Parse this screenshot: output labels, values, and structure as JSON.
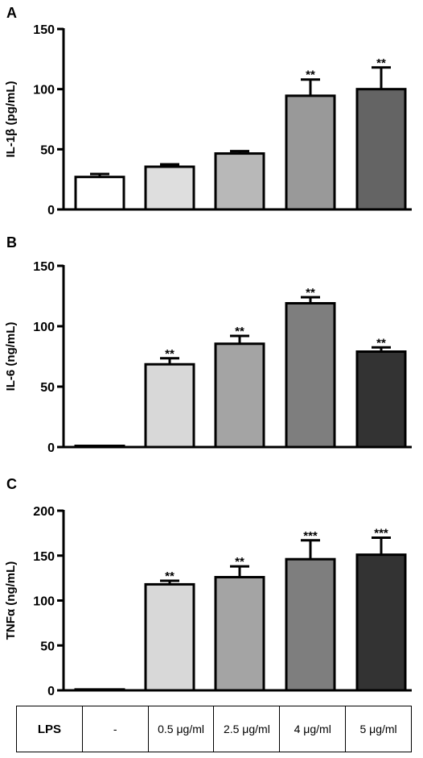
{
  "chart_data": [
    {
      "type": "bar",
      "panel": "A",
      "ylabel": "IL-1β (pg/mL)",
      "ylim": [
        0,
        150
      ],
      "yticks": [
        0,
        50,
        100,
        150
      ],
      "values": [
        27,
        35.5,
        46.5,
        94.5,
        100
      ],
      "errors": [
        2.5,
        2,
        2,
        13.5,
        18
      ],
      "significance": [
        "",
        "",
        "",
        "**",
        "**"
      ],
      "colors": [
        "#ffffff",
        "#dedede",
        "#b8b8b8",
        "#999999",
        "#646464"
      ]
    },
    {
      "type": "bar",
      "panel": "B",
      "ylabel": "IL-6 (ng/mL)",
      "ylim": [
        0,
        150
      ],
      "yticks": [
        0,
        50,
        100,
        150
      ],
      "values": [
        1,
        68.5,
        85.5,
        119,
        79
      ],
      "errors": [
        0,
        5,
        6.5,
        5,
        3.5
      ],
      "significance": [
        "",
        "**",
        "**",
        "**",
        "**"
      ],
      "colors": [
        "#ffffff",
        "#d8d8d8",
        "#a4a4a4",
        "#7e7e7e",
        "#333333"
      ]
    },
    {
      "type": "bar",
      "panel": "C",
      "ylabel": "TNFα (ng/mL)",
      "ylim": [
        0,
        200
      ],
      "yticks": [
        0,
        50,
        100,
        150,
        200
      ],
      "values": [
        1,
        118,
        126,
        146,
        151
      ],
      "errors": [
        0,
        4,
        12,
        21,
        19
      ],
      "significance": [
        "",
        "**",
        "**",
        "***",
        "***"
      ],
      "colors": [
        "#ffffff",
        "#d8d8d8",
        "#a4a4a4",
        "#7e7e7e",
        "#333333"
      ]
    }
  ],
  "table": {
    "row_label": "LPS",
    "cells": [
      "-",
      "0.5 μg/ml",
      "2.5 μg/ml",
      "4 μg/ml",
      "5 μg/ml"
    ]
  }
}
